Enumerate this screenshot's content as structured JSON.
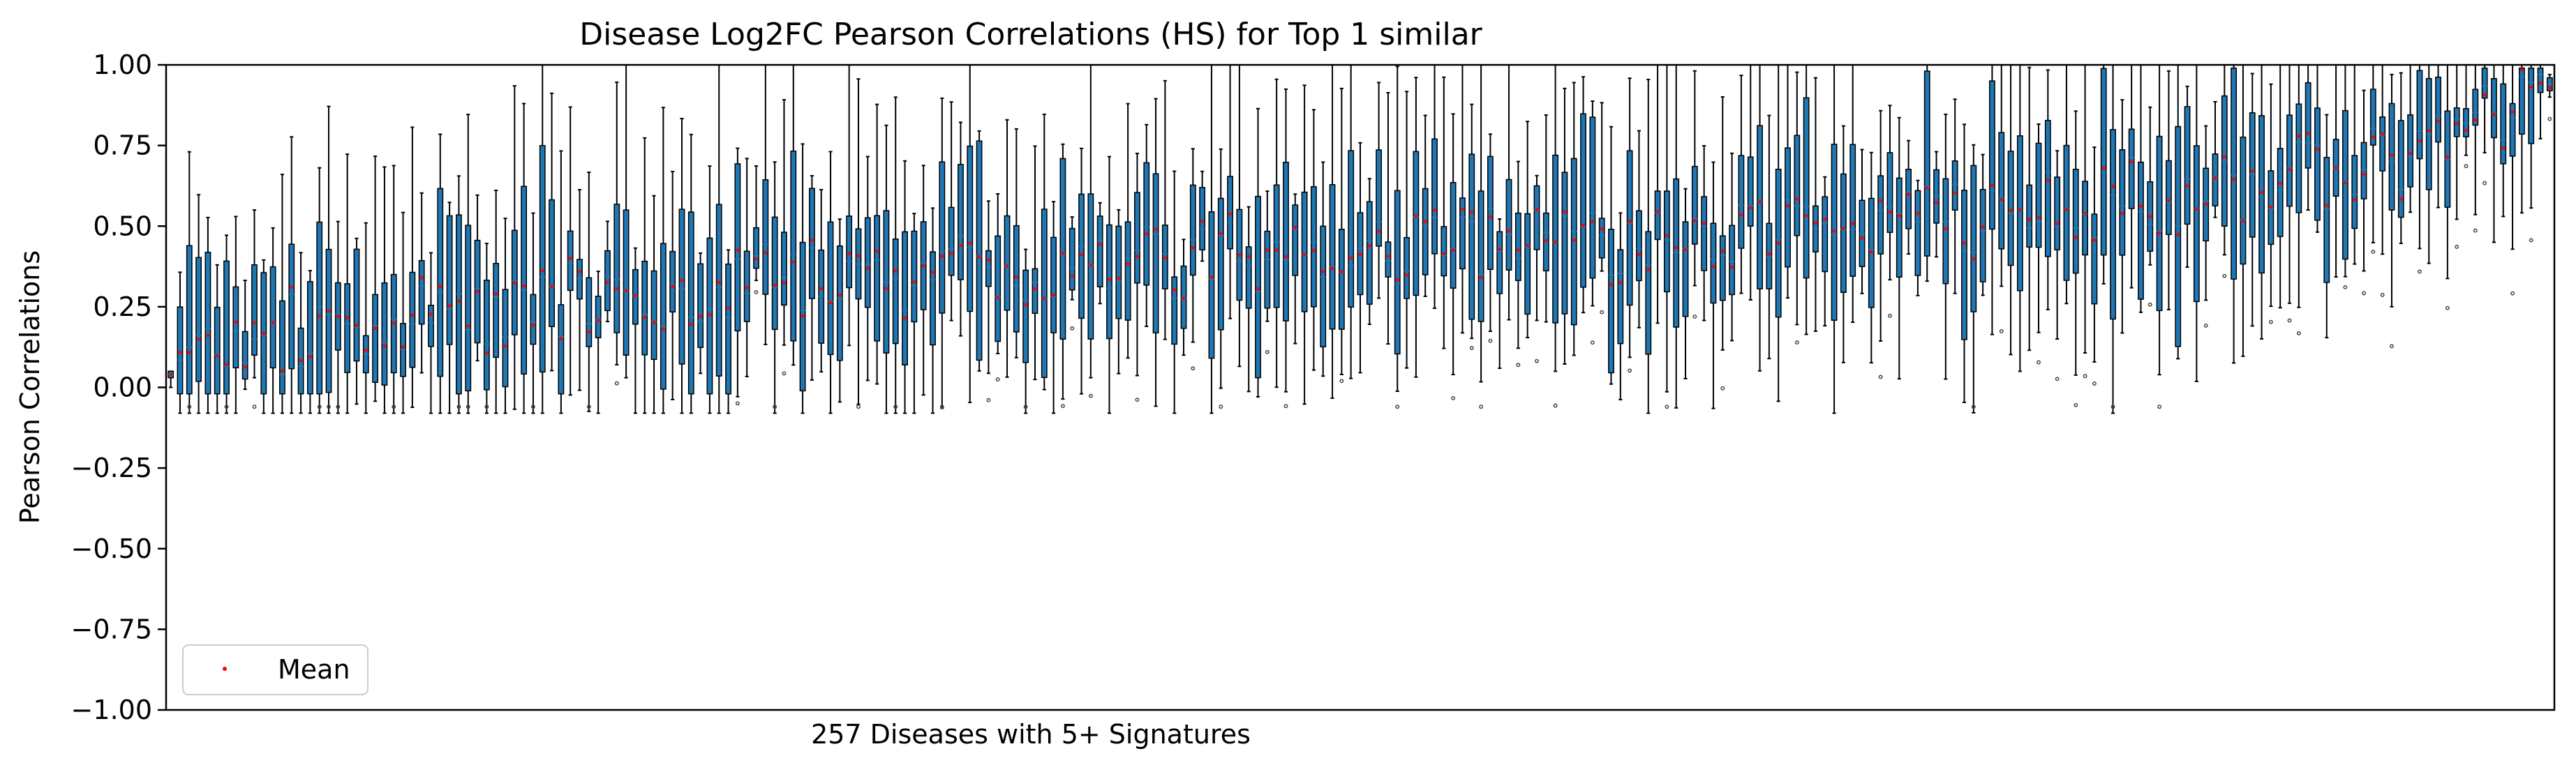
{
  "chart_data": {
    "type": "boxplot",
    "title": "Disease Log2FC Pearson Correlations (HS) for Top 1 similar",
    "xlabel": "257 Diseases with 5+ Signatures",
    "ylabel": "Pearson Correlations",
    "ylim": [
      -1.0,
      1.0
    ],
    "yticks": [
      -1.0,
      -0.75,
      -0.5,
      -0.25,
      0.0,
      0.25,
      0.5,
      0.75,
      1.0
    ],
    "ytick_labels": [
      "−1.00",
      "−0.75",
      "−0.50",
      "−0.25",
      "0.00",
      "0.25",
      "0.50",
      "0.75",
      "1.00"
    ],
    "xticks": [],
    "grid": false,
    "n_boxes": 257,
    "box_color": "#1f77b4",
    "mean_marker_color": "#ff0000",
    "legend": {
      "position": "lower-left",
      "entries": [
        {
          "label": "Mean",
          "marker": "point",
          "color": "#ff0000"
        }
      ]
    },
    "median_ordering": "roughly increasing from left (~0.05) to right (~0.95)",
    "anchor_boxes": [
      {
        "index": 1,
        "q1": 0.03,
        "median": 0.04,
        "q3": 0.05,
        "whisker_low": 0.0,
        "whisker_high": 0.05,
        "mean": 0.04
      },
      {
        "index": 10,
        "q1": 0.1,
        "median": 0.15,
        "q3": 0.38,
        "whisker_low": 0.03,
        "whisker_high": 0.55,
        "mean": 0.2
      },
      {
        "index": 50,
        "q1": 0.1,
        "median": 0.3,
        "q3": 0.55,
        "whisker_low": 0.03,
        "whisker_high": 1.0,
        "mean": 0.3
      },
      {
        "index": 100,
        "q1": 0.15,
        "median": 0.38,
        "q3": 0.6,
        "whisker_low": 0.03,
        "whisker_high": 1.0,
        "mean": 0.38
      },
      {
        "index": 150,
        "q1": 0.2,
        "median": 0.45,
        "q3": 0.72,
        "whisker_low": 0.05,
        "whisker_high": 1.0,
        "mean": 0.45
      },
      {
        "index": 200,
        "q1": 0.3,
        "median": 0.55,
        "q3": 0.78,
        "whisker_low": 0.05,
        "whisker_high": 1.0,
        "mean": 0.55
      },
      {
        "index": 240,
        "q1": 0.55,
        "median": 0.7,
        "q3": 0.88,
        "whisker_low": 0.25,
        "whisker_high": 0.97,
        "mean": 0.72
      },
      {
        "index": 257,
        "q1": 0.92,
        "median": 0.94,
        "q3": 0.96,
        "whisker_low": 0.9,
        "whisker_high": 0.97,
        "mean": 0.93
      }
    ]
  }
}
